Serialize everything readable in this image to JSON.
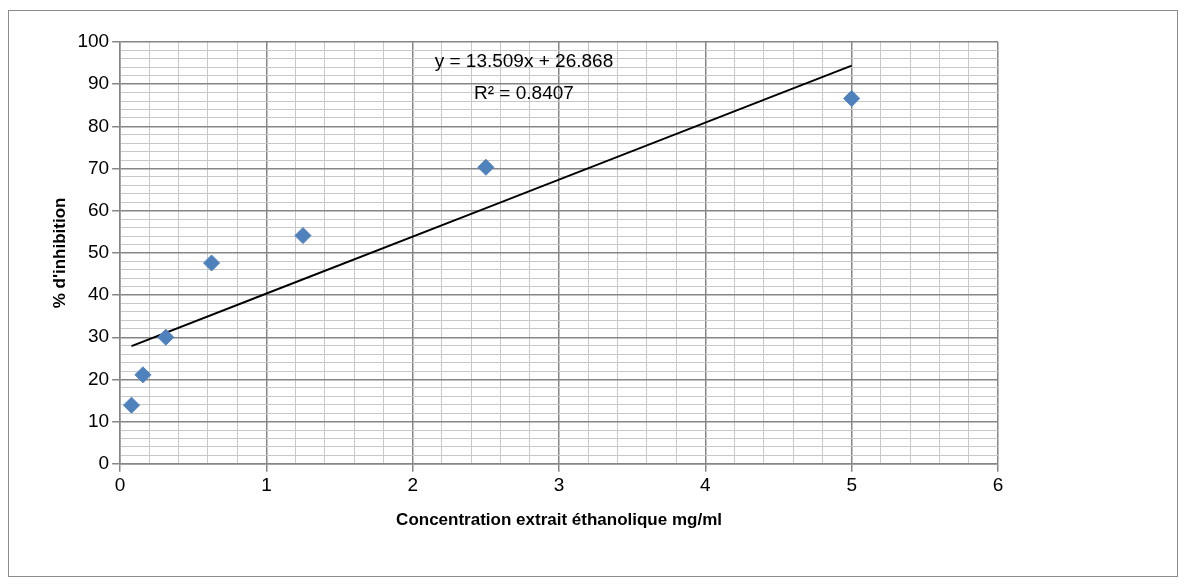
{
  "chart_data": {
    "type": "scatter",
    "xlabel": "Concentration extrait éthanolique mg/ml",
    "ylabel": "% d'inhibition",
    "annotations": [
      "y = 13.509x + 26.868",
      "R² = 0.8407"
    ],
    "series": [
      {
        "color": "#4f81bd",
        "marker": "diamond",
        "x": [
          0.078,
          0.156,
          0.3125,
          0.625,
          1.25,
          2.5,
          5
        ],
        "values": [
          13.9,
          21.1,
          30.0,
          47.6,
          54.1,
          70.3,
          86.6
        ]
      },
      {
        "type": "line",
        "color": "#000000",
        "marker": "none",
        "line_style": "solid",
        "x": [
          0.078,
          5
        ],
        "values": [
          27.9,
          94.4
        ]
      }
    ],
    "xlim": [
      0,
      6
    ],
    "xticks": [
      0,
      {
        "value": 0.2,
        "label": null
      },
      {
        "value": 0.4,
        "label": null
      },
      {
        "value": 0.6,
        "label": null
      },
      {
        "value": 0.8,
        "label": null
      },
      1,
      {
        "value": 1.2,
        "label": null
      },
      {
        "value": 1.4,
        "label": null
      },
      {
        "value": 1.6,
        "label": null
      },
      {
        "value": 1.8,
        "label": null
      },
      2,
      {
        "value": 2.2,
        "label": null
      },
      {
        "value": 2.4,
        "label": null
      },
      {
        "value": 2.6,
        "label": null
      },
      {
        "value": 2.8,
        "label": null
      },
      3,
      {
        "value": 3.2,
        "label": null
      },
      {
        "value": 3.4,
        "label": null
      },
      {
        "value": 3.6,
        "label": null
      },
      {
        "value": 3.8,
        "label": null
      },
      4,
      {
        "value": 4.2,
        "label": null
      },
      {
        "value": 4.4,
        "label": null
      },
      {
        "value": 4.6,
        "label": null
      },
      {
        "value": 4.8,
        "label": null
      },
      5,
      {
        "value": 5.2,
        "label": null
      },
      {
        "value": 5.4,
        "label": null
      },
      {
        "value": 5.6,
        "label": null
      },
      {
        "value": 5.8,
        "label": null
      },
      6
    ],
    "ylim": [
      0,
      100
    ],
    "yticks": [
      0,
      {
        "value": 2,
        "label": null
      },
      {
        "value": 4,
        "label": null
      },
      {
        "value": 6,
        "label": null
      },
      {
        "value": 8,
        "label": null
      },
      10,
      {
        "value": 12,
        "label": null
      },
      {
        "value": 14,
        "label": null
      },
      {
        "value": 16,
        "label": null
      },
      {
        "value": 18,
        "label": null
      },
      20,
      {
        "value": 22,
        "label": null
      },
      {
        "value": 24,
        "label": null
      },
      {
        "value": 26,
        "label": null
      },
      {
        "value": 28,
        "label": null
      },
      30,
      {
        "value": 32,
        "label": null
      },
      {
        "value": 34,
        "label": null
      },
      {
        "value": 36,
        "label": null
      },
      {
        "value": 38,
        "label": null
      },
      40,
      {
        "value": 42,
        "label": null
      },
      {
        "value": 44,
        "label": null
      },
      {
        "value": 46,
        "label": null
      },
      {
        "value": 48,
        "label": null
      },
      50,
      {
        "value": 52,
        "label": null
      },
      {
        "value": 54,
        "label": null
      },
      {
        "value": 56,
        "label": null
      },
      {
        "value": 58,
        "label": null
      },
      60,
      {
        "value": 62,
        "label": null
      },
      {
        "value": 64,
        "label": null
      },
      {
        "value": 66,
        "label": null
      },
      {
        "value": 68,
        "label": null
      },
      70,
      {
        "value": 72,
        "label": null
      },
      {
        "value": 74,
        "label": null
      },
      {
        "value": 76,
        "label": null
      },
      {
        "value": 78,
        "label": null
      },
      80,
      {
        "value": 82,
        "label": null
      },
      {
        "value": 84,
        "label": null
      },
      {
        "value": 86,
        "label": null
      },
      {
        "value": 88,
        "label": null
      },
      90,
      {
        "value": 92,
        "label": null
      },
      {
        "value": 94,
        "label": null
      },
      {
        "value": 96,
        "label": null
      },
      {
        "value": 98,
        "label": null
      },
      100
    ],
    "grid": true,
    "legend": false
  }
}
